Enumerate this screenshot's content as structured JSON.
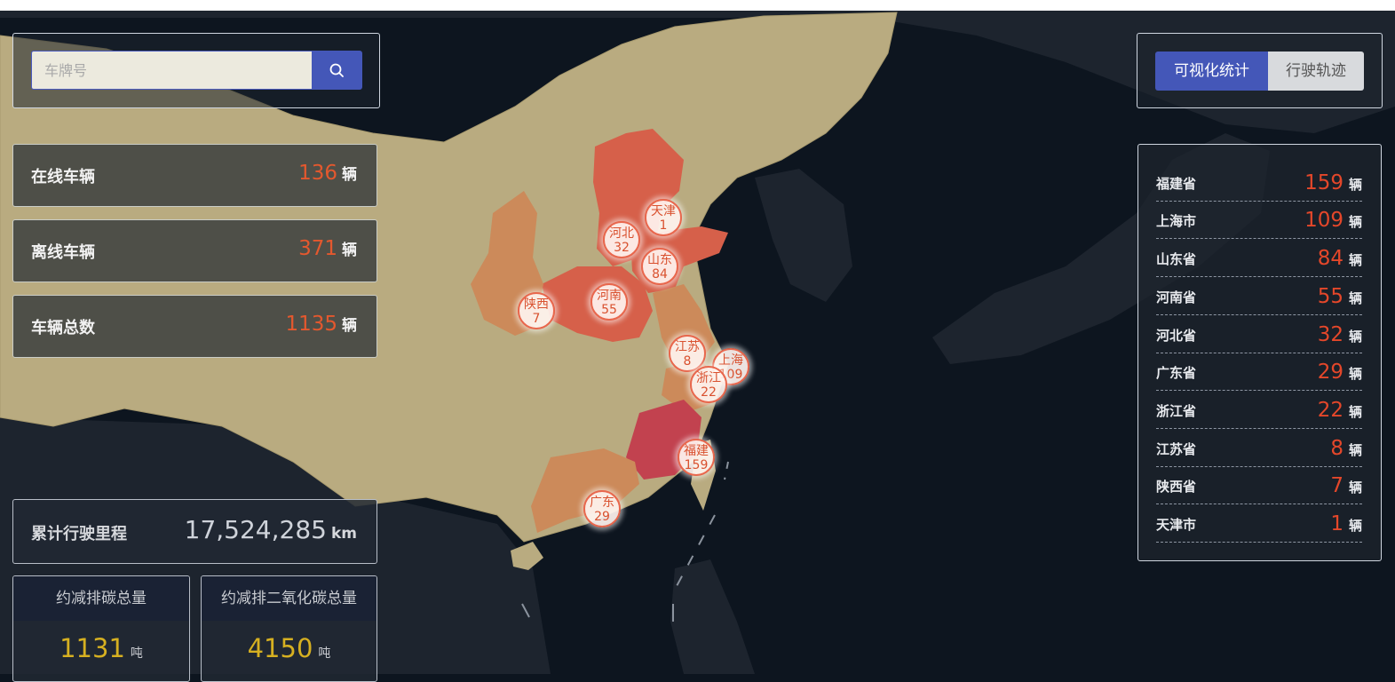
{
  "search": {
    "placeholder": "车牌号",
    "button_icon": "search-icon"
  },
  "stats": [
    {
      "label": "在线车辆",
      "value": "136",
      "unit": "辆"
    },
    {
      "label": "离线车辆",
      "value": "371",
      "unit": "辆"
    },
    {
      "label": "车辆总数",
      "value": "1135",
      "unit": "辆"
    }
  ],
  "mileage": {
    "label": "累计行驶里程",
    "value": "17,524,285",
    "unit": "km"
  },
  "emissions": [
    {
      "label": "约减排碳总量",
      "value": "1131",
      "unit": "吨"
    },
    {
      "label": "约减排二氧化碳总量",
      "value": "4150",
      "unit": "吨"
    }
  ],
  "toggle": {
    "active": "可视化统计",
    "inactive": "行驶轨迹"
  },
  "ranking": [
    {
      "name": "福建省",
      "value": "159",
      "unit": "辆"
    },
    {
      "name": "上海市",
      "value": "109",
      "unit": "辆"
    },
    {
      "name": "山东省",
      "value": "84",
      "unit": "辆"
    },
    {
      "name": "河南省",
      "value": "55",
      "unit": "辆"
    },
    {
      "name": "河北省",
      "value": "32",
      "unit": "辆"
    },
    {
      "name": "广东省",
      "value": "29",
      "unit": "辆"
    },
    {
      "name": "浙江省",
      "value": "22",
      "unit": "辆"
    },
    {
      "name": "江苏省",
      "value": "8",
      "unit": "辆"
    },
    {
      "name": "陕西省",
      "value": "7",
      "unit": "辆"
    },
    {
      "name": "天津市",
      "value": "1",
      "unit": "辆"
    }
  ],
  "markers": [
    {
      "name": "天津",
      "value": "1"
    },
    {
      "name": "河北",
      "value": "32"
    },
    {
      "name": "山东",
      "value": "84"
    },
    {
      "name": "河南",
      "value": "55"
    },
    {
      "name": "陕西",
      "value": "7"
    },
    {
      "name": "江苏",
      "value": "8"
    },
    {
      "name": "上海",
      "value": "109"
    },
    {
      "name": "浙江",
      "value": "22"
    },
    {
      "name": "福建",
      "value": "159"
    },
    {
      "name": "广东",
      "value": "29"
    }
  ],
  "colors": {
    "ocean": "#0d151f",
    "land_other": "#1c232d",
    "china_land": "#b9ab80",
    "scale_high": "#c2424f",
    "scale_mid": "#d6604a",
    "scale_low": "#cc8a5a",
    "accent": "#4457b8",
    "value_red": "#e4472a",
    "value_gold": "#d6b021"
  }
}
